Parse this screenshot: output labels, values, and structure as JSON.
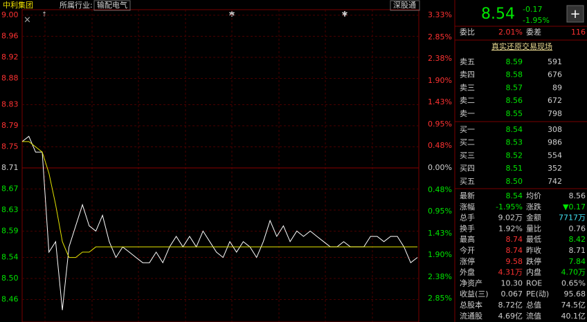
{
  "header": {
    "stock_name": "中利集团",
    "industry_label": "所属行业:",
    "industry": "输配电气",
    "tag": "深股通"
  },
  "chart_data": {
    "type": "line",
    "series": [
      {
        "color": "#ffffff",
        "values": [
          8.76,
          8.77,
          8.74,
          8.74,
          8.55,
          8.57,
          8.44,
          8.56,
          8.6,
          8.64,
          8.6,
          8.59,
          8.62,
          8.57,
          8.54,
          8.56,
          8.55,
          8.54,
          8.53,
          8.53,
          8.55,
          8.53,
          8.56,
          8.58,
          8.56,
          8.58,
          8.56,
          8.59,
          8.57,
          8.55,
          8.54,
          8.57,
          8.55,
          8.57,
          8.56,
          8.54,
          8.57,
          8.61,
          8.58,
          8.6,
          8.57,
          8.59,
          8.58,
          8.59,
          8.58,
          8.57,
          8.56,
          8.56,
          8.57,
          8.56,
          8.56,
          8.56,
          8.58,
          8.58,
          8.57,
          8.58,
          8.58,
          8.56,
          8.53,
          8.54
        ]
      },
      {
        "color": "#e6e600",
        "values": [
          8.76,
          8.76,
          8.75,
          8.74,
          8.7,
          8.64,
          8.57,
          8.54,
          8.54,
          8.55,
          8.55,
          8.56,
          8.56,
          8.56,
          8.56,
          8.56,
          8.56,
          8.56,
          8.56,
          8.56,
          8.56,
          8.56,
          8.56,
          8.56,
          8.56,
          8.56,
          8.56,
          8.56,
          8.56,
          8.56,
          8.56,
          8.56,
          8.56,
          8.56,
          8.56,
          8.56,
          8.56,
          8.56,
          8.56,
          8.56,
          8.56,
          8.56,
          8.56,
          8.56,
          8.56,
          8.56,
          8.56,
          8.56,
          8.56,
          8.56,
          8.56,
          8.56,
          8.56,
          8.56,
          8.56,
          8.56,
          8.56,
          8.56,
          8.56,
          8.56
        ]
      }
    ],
    "ylim": [
      8.42,
      9.0
    ],
    "yticks": [
      {
        "value": 9.0,
        "label": "9.00"
      },
      8.96,
      8.92,
      8.88,
      8.83,
      8.79,
      8.75,
      8.71,
      8.67,
      8.63,
      8.59,
      8.54,
      {
        "value": 8.5,
        "label": "8.50"
      },
      8.46
    ],
    "y2lim": [
      -3.33,
      3.33
    ],
    "y2ticks": [
      {
        "value": 3.33,
        "label": "3.33%"
      },
      {
        "value": 2.85,
        "label": "2.85%"
      },
      {
        "value": 2.38,
        "label": "2.38%"
      },
      {
        "value": 1.9,
        "label": "1.90%"
      },
      {
        "value": 1.43,
        "label": "1.43%"
      },
      {
        "value": 0.95,
        "label": "0.95%"
      },
      {
        "value": 0.48,
        "label": "0.48%"
      },
      {
        "value": 0,
        "label": "0.00%"
      },
      {
        "value": -0.48,
        "label": "0.48%"
      },
      {
        "value": -0.95,
        "label": "0.95%"
      },
      {
        "value": -1.43,
        "label": "1.43%"
      },
      {
        "value": -1.9,
        "label": "1.90%"
      },
      {
        "value": -2.38,
        "label": "2.38%"
      },
      {
        "value": -2.85,
        "label": "2.85%"
      }
    ],
    "grid": true
  },
  "quote": {
    "price": "8.54",
    "change": "-0.17",
    "change_pct": "-1.95%"
  },
  "order_ratio": {
    "label": "委比",
    "value": "2.01%",
    "diff_label": "委差",
    "diff": "116"
  },
  "link": "真实还原交易现场",
  "asks": [
    [
      "卖五",
      "8.59",
      "591"
    ],
    [
      "卖四",
      "8.58",
      "676"
    ],
    [
      "卖三",
      "8.57",
      "89"
    ],
    [
      "卖二",
      "8.56",
      "672"
    ],
    [
      "卖一",
      "8.55",
      "798"
    ]
  ],
  "bids": [
    [
      "买一",
      "8.54",
      "308"
    ],
    [
      "买二",
      "8.53",
      "986"
    ],
    [
      "买三",
      "8.52",
      "554"
    ],
    [
      "买四",
      "8.51",
      "352"
    ],
    [
      "买五",
      "8.50",
      "742"
    ]
  ],
  "stats": [
    [
      "最新",
      "8.54",
      "均价",
      "8.56"
    ],
    [
      "涨幅",
      "-1.95%",
      "涨跌",
      "▼0.17"
    ],
    [
      "总手",
      "9.02万",
      "金额",
      "7717万"
    ],
    [
      "换手",
      "1.92%",
      "量比",
      "0.76"
    ],
    [
      "最高",
      "8.74",
      "最低",
      "8.42"
    ],
    [
      "今开",
      "8.74",
      "昨收",
      "8.71"
    ],
    [
      "涨停",
      "9.58",
      "跌停",
      "7.84"
    ],
    [
      "外盘",
      "4.31万",
      "内盘",
      "4.70万"
    ],
    [
      "净资产",
      "10.30",
      "ROE",
      "0.65%"
    ],
    [
      "收益(三)",
      "0.067",
      "PE(动)",
      "95.68"
    ],
    [
      "总股本",
      "8.72亿",
      "总值",
      "74.5亿"
    ],
    [
      "流通股",
      "4.69亿",
      "流值",
      "40.1亿"
    ]
  ]
}
